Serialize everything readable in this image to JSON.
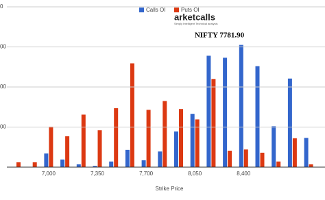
{
  "chart_data": {
    "type": "bar",
    "title": "NIFTY 7781.90",
    "watermark": "arketcalls",
    "watermark_tagline": "Simply Intelligent Technical analysis",
    "x_label": "Strike Price",
    "categories": [
      null,
      null,
      "7,000",
      null,
      null,
      "7,350",
      null,
      null,
      "7,700",
      null,
      null,
      "8,050",
      null,
      null,
      "8,400",
      null,
      null,
      null,
      null
    ],
    "series": [
      {
        "name": "Calls OI",
        "color": "#3366cc",
        "values": [
          0,
          0,
          0.34,
          0.19,
          0.07,
          0.03,
          0.14,
          0.43,
          0.17,
          0.39,
          0.89,
          1.33,
          2.78,
          2.73,
          3.05,
          2.52,
          1.02,
          2.21,
          0.73
        ]
      },
      {
        "name": "Puts OI",
        "color": "#dc3912",
        "values": [
          0.12,
          0.12,
          1.01,
          0.77,
          1.31,
          0.92,
          1.47,
          2.59,
          1.43,
          1.65,
          1.45,
          1.19,
          2.2,
          0.41,
          0.44,
          0.36,
          0.14,
          0.72,
          0.07
        ]
      }
    ],
    "ylim": [
      0,
      4
    ],
    "yticks": [
      {
        "value": 1,
        "label": "00"
      },
      {
        "value": 2,
        "label": "00"
      },
      {
        "value": 3,
        "label": "00"
      },
      {
        "value": 4,
        "label": "0"
      }
    ],
    "grid": true,
    "legend": "top"
  }
}
